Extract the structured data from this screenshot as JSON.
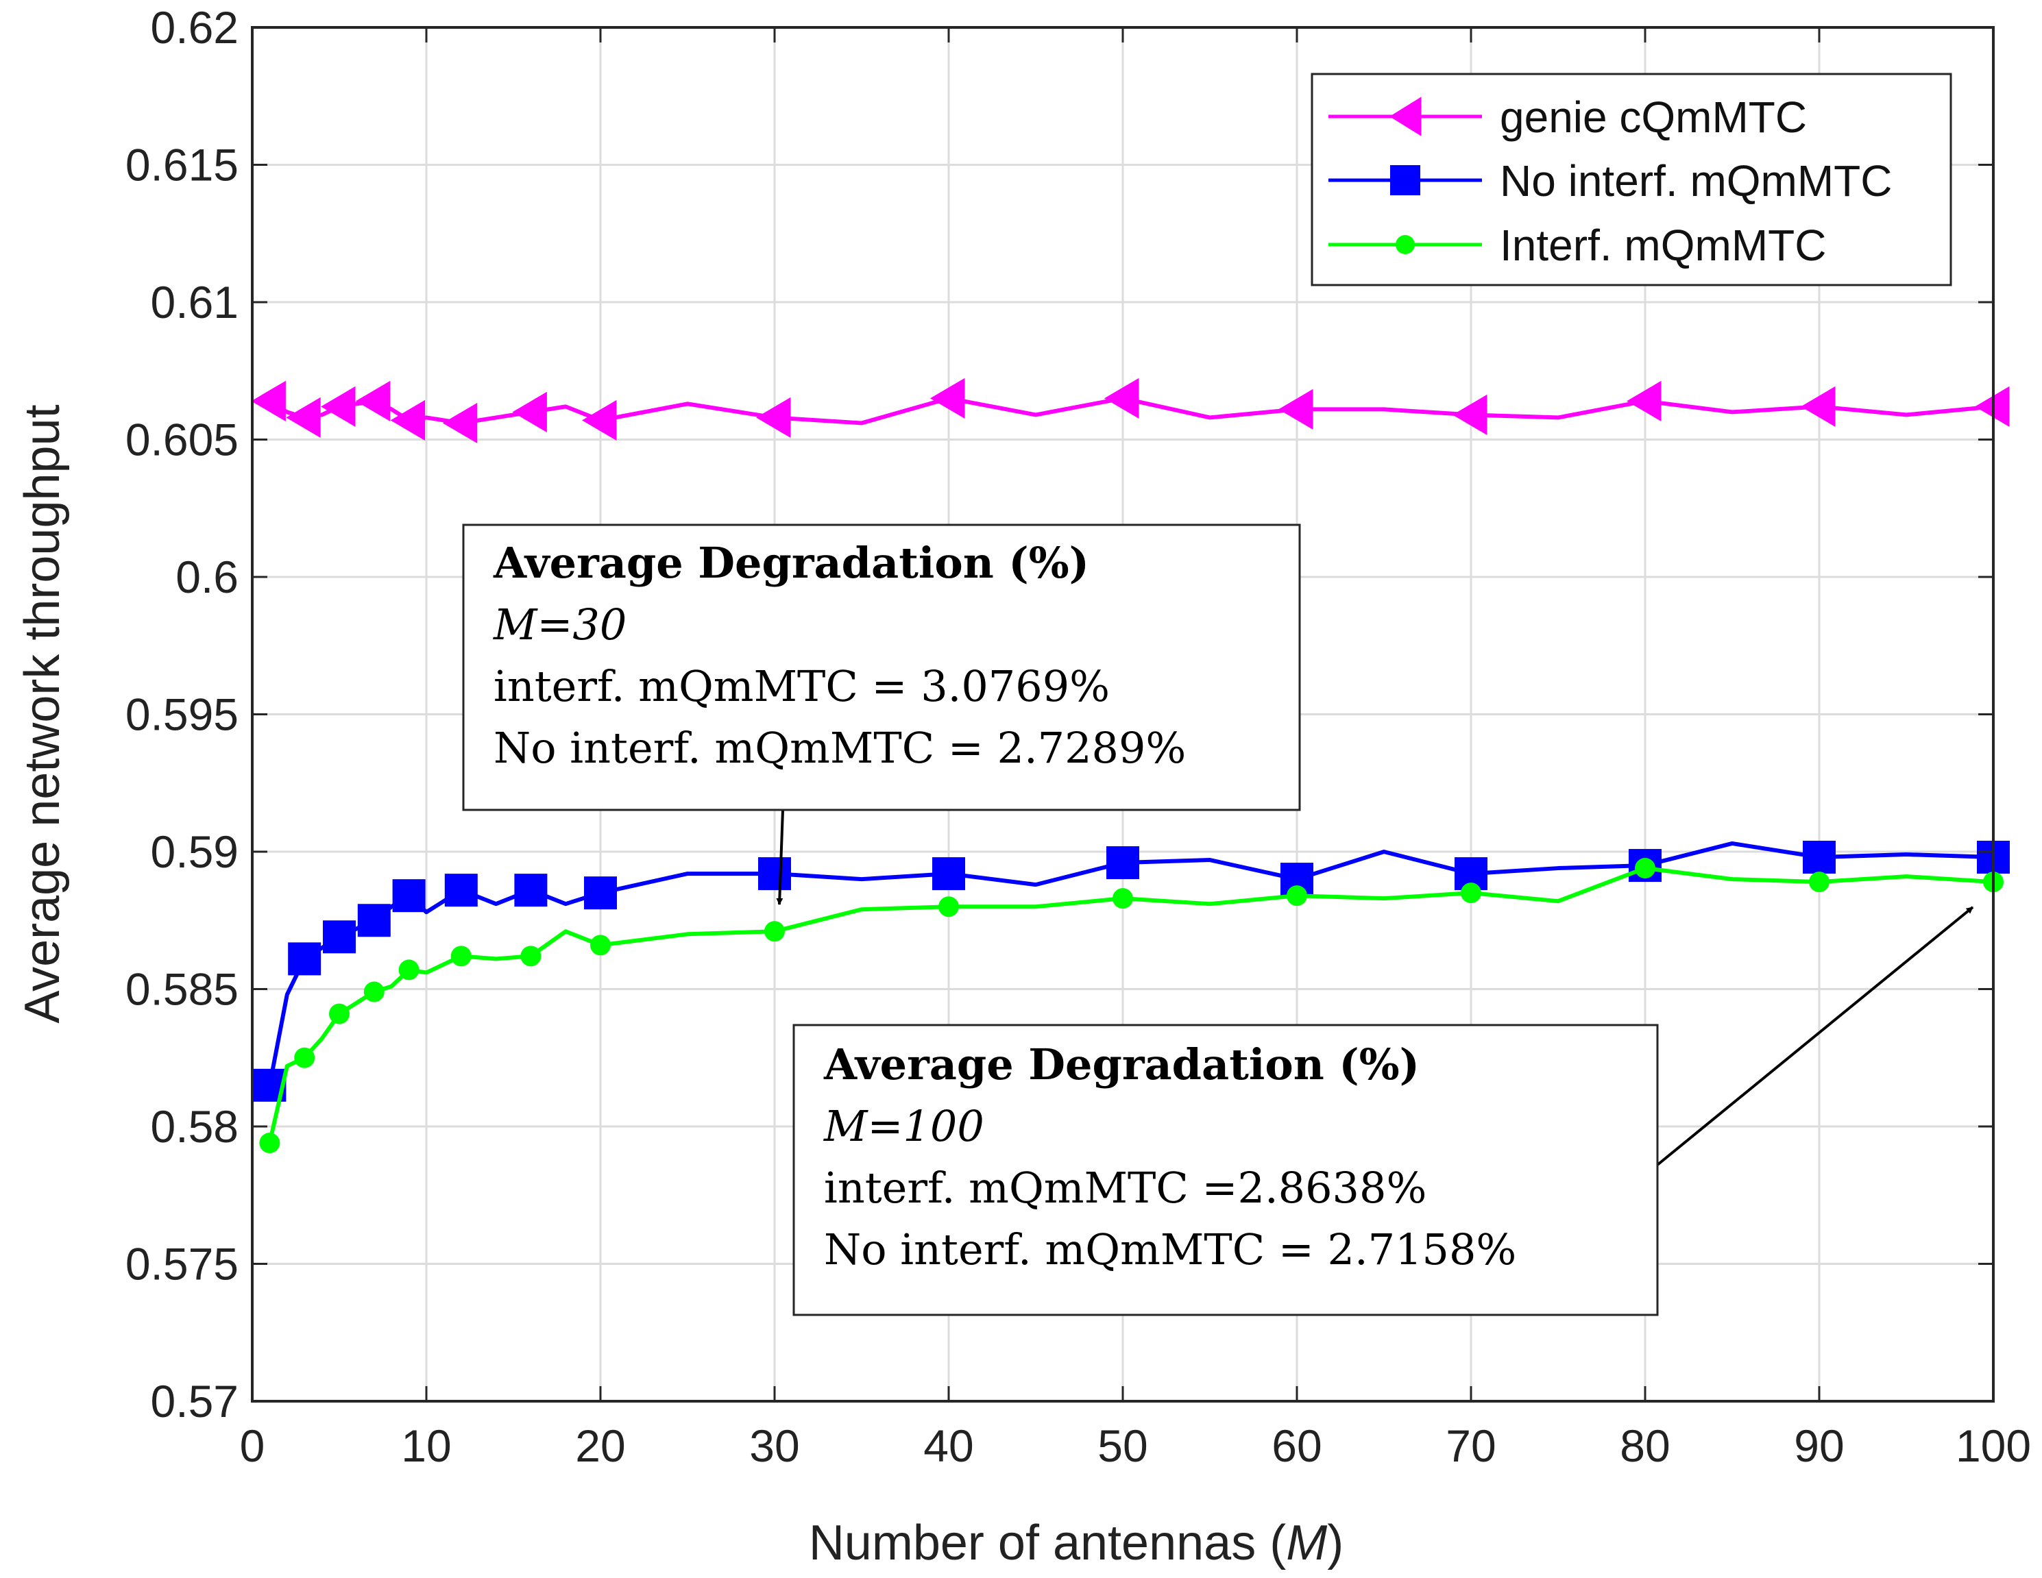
{
  "chart_data": {
    "type": "line",
    "xlabel": "Number of antennas",
    "xlabel_var": "M",
    "ylabel": "Average network throughput",
    "xlim": [
      0,
      100
    ],
    "ylim": [
      0.57,
      0.62
    ],
    "xticks": [
      0,
      10,
      20,
      30,
      40,
      50,
      60,
      70,
      80,
      90,
      100
    ],
    "yticks": [
      0.57,
      0.575,
      0.58,
      0.585,
      0.59,
      0.595,
      0.6,
      0.605,
      0.61,
      0.615,
      0.62
    ],
    "ytick_labels": [
      "0.57",
      "0.575",
      "0.58",
      "0.585",
      "0.59",
      "0.595",
      "0.6",
      "0.605",
      "0.61",
      "0.615",
      "0.62"
    ],
    "grid": true,
    "legend_position": "top-right",
    "series": [
      {
        "name": "genie cQmMTC",
        "color": "#ff00ff",
        "marker": "triangle-left",
        "x": [
          1,
          2,
          3,
          4,
          5,
          6,
          7,
          8,
          9,
          10,
          12,
          14,
          16,
          18,
          20,
          25,
          30,
          35,
          40,
          45,
          50,
          55,
          60,
          65,
          70,
          75,
          80,
          85,
          90,
          95,
          100
        ],
        "y": [
          0.6064,
          0.606,
          0.6058,
          0.6059,
          0.6062,
          0.6063,
          0.6064,
          0.6061,
          0.6057,
          0.6058,
          0.6056,
          0.6058,
          0.606,
          0.6062,
          0.6057,
          0.6063,
          0.6058,
          0.6056,
          0.6065,
          0.6059,
          0.6065,
          0.6058,
          0.6061,
          0.6061,
          0.6059,
          0.6058,
          0.6064,
          0.606,
          0.6062,
          0.6059,
          0.6062
        ],
        "marker_x": [
          1,
          3,
          5,
          7,
          9,
          12,
          16,
          20,
          30,
          40,
          50,
          60,
          70,
          80,
          90,
          100
        ]
      },
      {
        "name": "No interf. mQmMTC",
        "color": "#0000ff",
        "marker": "square",
        "x": [
          1,
          2,
          3,
          4,
          5,
          6,
          7,
          8,
          9,
          10,
          12,
          14,
          16,
          18,
          20,
          25,
          30,
          35,
          40,
          45,
          50,
          55,
          60,
          65,
          70,
          75,
          80,
          85,
          90,
          95,
          100
        ],
        "y": [
          0.5815,
          0.5848,
          0.5861,
          0.5865,
          0.5869,
          0.5872,
          0.5875,
          0.588,
          0.5884,
          0.5878,
          0.5886,
          0.5881,
          0.5886,
          0.5881,
          0.5885,
          0.5892,
          0.5892,
          0.589,
          0.5892,
          0.5888,
          0.5896,
          0.5897,
          0.589,
          0.59,
          0.5892,
          0.5894,
          0.5895,
          0.5903,
          0.5898,
          0.5899,
          0.5898
        ],
        "marker_x": [
          1,
          3,
          5,
          7,
          9,
          12,
          16,
          20,
          30,
          40,
          50,
          60,
          70,
          80,
          90,
          100
        ]
      },
      {
        "name": "Interf. mQmMTC",
        "color": "#00ff00",
        "marker": "dot",
        "x": [
          1,
          2,
          3,
          4,
          5,
          6,
          7,
          8,
          9,
          10,
          12,
          14,
          16,
          18,
          20,
          25,
          30,
          35,
          40,
          45,
          50,
          55,
          60,
          65,
          70,
          75,
          80,
          85,
          90,
          95,
          100
        ],
        "y": [
          0.5794,
          0.5822,
          0.5825,
          0.5832,
          0.5841,
          0.5845,
          0.5849,
          0.5851,
          0.5857,
          0.5856,
          0.5862,
          0.5861,
          0.5862,
          0.5871,
          0.5866,
          0.587,
          0.5871,
          0.5879,
          0.588,
          0.588,
          0.5883,
          0.5881,
          0.5884,
          0.5883,
          0.5885,
          0.5882,
          0.5894,
          0.589,
          0.5889,
          0.5891,
          0.5889
        ],
        "marker_x": [
          1,
          3,
          5,
          7,
          9,
          12,
          16,
          20,
          30,
          40,
          50,
          60,
          70,
          80,
          90,
          100
        ]
      }
    ],
    "annotations": [
      {
        "title": "Average Degradation (%)",
        "subtitle": "M=30",
        "line1": "interf. mQmMTC = 3.0769%",
        "line2": "No interf. mQmMTC = 2.7289%",
        "arrow_to": [
          30,
          0.5871
        ]
      },
      {
        "title": "Average Degradation (%)",
        "subtitle": "M=100",
        "line1": "interf. mQmMTC =2.8638%",
        "line2": "No interf. mQmMTC = 2.7158%",
        "arrow_to": [
          100,
          0.5889
        ]
      }
    ]
  }
}
